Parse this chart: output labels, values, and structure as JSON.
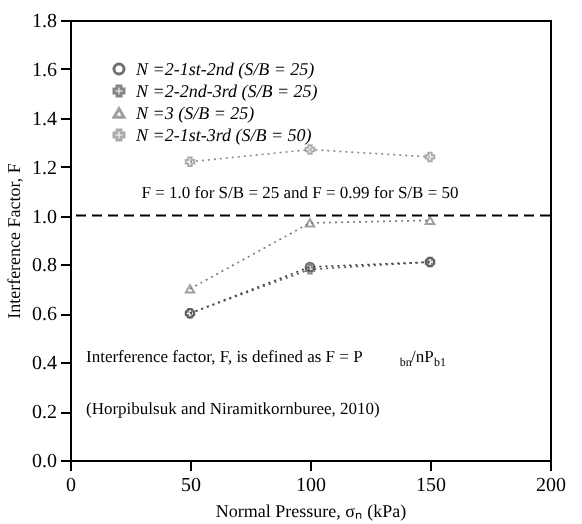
{
  "chart_data": {
    "type": "line",
    "xlabel": "Normal Pressure, σₙ (kPa)",
    "ylabel": "Interference Factor, F",
    "x": [
      50,
      100,
      150
    ],
    "xlim": [
      0,
      200
    ],
    "xticks": [
      0,
      50,
      100,
      150,
      200
    ],
    "ylim": [
      0,
      1.8
    ],
    "yticks": [
      {
        "value": 0,
        "label": "0.0"
      },
      0.2,
      0.4,
      0.6,
      0.8,
      {
        "value": 1,
        "label": "1.0"
      },
      1.2,
      1.4,
      1.6,
      1.8
    ],
    "series": [
      {
        "name": "N =2-1st-2nd (S/B = 25)",
        "color": "#333333",
        "values": [
          0.6,
          0.79,
          0.81
        ],
        "marker": "circle"
      },
      {
        "name": "N =2-2nd-3rd (S/B = 25)",
        "color": "#555555",
        "values": [
          0.6,
          0.78,
          0.81
        ],
        "marker": "cross"
      },
      {
        "name": "N =3 (S/B = 25)",
        "color": "#777777",
        "values": [
          0.7,
          0.97,
          0.98
        ],
        "marker": "triangle"
      },
      {
        "name": "N =2-1st-3rd (S/B = 50)",
        "color": "#888888",
        "values": [
          1.22,
          1.27,
          1.24
        ],
        "marker": "cross"
      }
    ],
    "line_style": "dotted",
    "legend": "top left",
    "grid": false,
    "ref_lines": [
      {
        "axis": "y",
        "value": 1.0,
        "label": "F = 1.0 for S/B = 25 and F = 0.99 for S/B = 50",
        "color": "#000000",
        "line_style": "dashed"
      }
    ],
    "annotations": [
      "Interference factor, F, is defined as F = P$_{bn}$/nP$_{b1}$",
      "(Horpibulsuk and Niramitkornburee, 2010)"
    ]
  }
}
